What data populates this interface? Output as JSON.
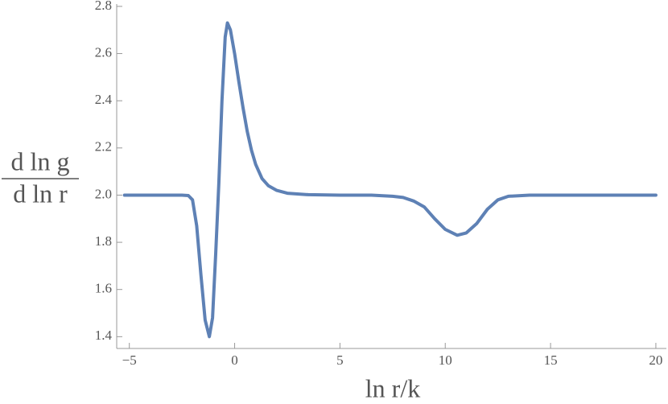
{
  "chart_data": {
    "type": "line",
    "x_label": "ln r/k",
    "y_label": {
      "numerator": "d ln g",
      "denominator": "d ln r"
    },
    "x": [
      -5.23,
      -2.5,
      -2.2,
      -2.0,
      -1.8,
      -1.6,
      -1.4,
      -1.2,
      -1.05,
      -0.9,
      -0.75,
      -0.6,
      -0.45,
      -0.34,
      -0.2,
      0,
      0.2,
      0.4,
      0.6,
      0.8,
      1.0,
      1.3,
      1.6,
      2.0,
      2.5,
      3.5,
      5,
      6.5,
      7.5,
      8.0,
      8.5,
      9.0,
      9.5,
      10.0,
      10.57,
      11.0,
      11.5,
      12.0,
      12.5,
      13.0,
      14,
      20
    ],
    "series": [
      {
        "color": "#5e81b5",
        "values": [
          2.0,
          2.0,
          1.998,
          1.98,
          1.87,
          1.66,
          1.47,
          1.4,
          1.48,
          1.75,
          2.05,
          2.4,
          2.67,
          2.73,
          2.7,
          2.6,
          2.48,
          2.37,
          2.27,
          2.19,
          2.13,
          2.07,
          2.04,
          2.02,
          2.008,
          2.002,
          2.0,
          2.0,
          1.995,
          1.99,
          1.975,
          1.95,
          1.9,
          1.855,
          1.83,
          1.84,
          1.88,
          1.94,
          1.98,
          1.995,
          2.0,
          2.0
        ]
      }
    ],
    "xlim": [
      -5.6,
      20.5
    ],
    "ylim": [
      1.35,
      2.81
    ],
    "xticks": [
      {
        "value": -5,
        "label": "−5"
      },
      0,
      5,
      10,
      15,
      20
    ],
    "yticks": [
      {
        "value": 1.4,
        "label": "1.4"
      },
      {
        "value": 1.6,
        "label": "1.6"
      },
      {
        "value": 1.8,
        "label": "1.8"
      },
      {
        "value": 2.0,
        "label": "2.0"
      },
      {
        "value": 2.2,
        "label": "2.2"
      },
      {
        "value": 2.4,
        "label": "2.4"
      },
      {
        "value": 2.6,
        "label": "2.6"
      },
      {
        "value": 2.8,
        "label": "2.8"
      }
    ],
    "grid": false
  }
}
